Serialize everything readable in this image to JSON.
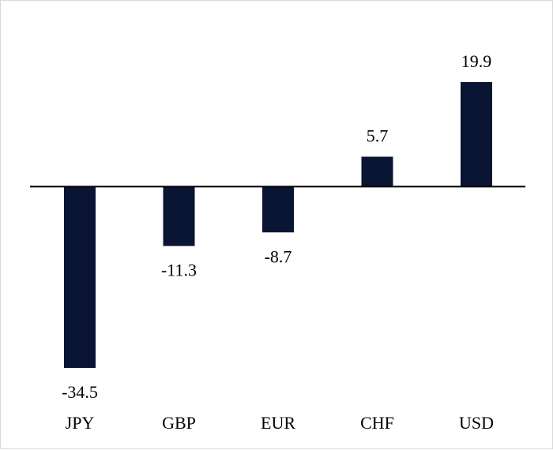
{
  "chart_data": {
    "type": "bar",
    "categories": [
      "JPY",
      "GBP",
      "EUR",
      "CHF",
      "USD"
    ],
    "values": [
      -34.5,
      -11.3,
      -8.7,
      5.7,
      19.9
    ],
    "data_labels": [
      "-34.5",
      "-11.3",
      "-8.7",
      "5.7",
      "19.9"
    ],
    "title": "",
    "xlabel": "",
    "ylabel": "",
    "ylim": [
      -34.5,
      19.9
    ],
    "grid": false,
    "legend": "none",
    "bar_color": "#0a1433",
    "axis_color": "#000000"
  }
}
